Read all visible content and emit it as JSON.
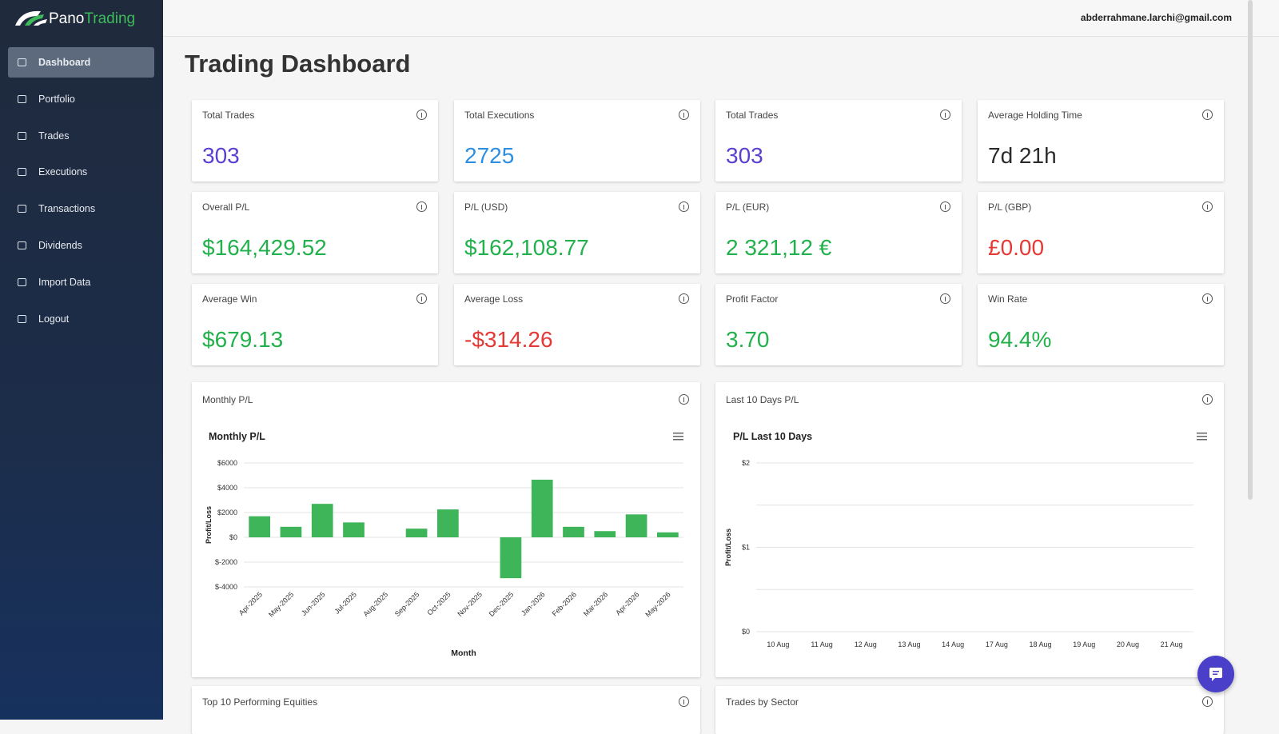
{
  "sidebar": {
    "logo": {
      "part1": "Pano",
      "part2": "Trading"
    },
    "menu": [
      "Dashboard",
      "Portfolio",
      "Trades",
      "Executions",
      "Transactions",
      "Dividends",
      "Import Data",
      "Logout"
    ],
    "active": 0
  },
  "header": {
    "email": "abderrahmane.larchi@gmail.com"
  },
  "page_title": "Trading Dashboard",
  "cards": [
    {
      "label": "Total Trades",
      "value": "303",
      "color": "#5b3fd1"
    },
    {
      "label": "Total Executions",
      "value": "2725",
      "color": "#2e8fe0"
    },
    {
      "label": "Total Trades",
      "value": "303",
      "color": "#5b3fd1"
    },
    {
      "label": "Average Holding Time",
      "value": "7d 21h",
      "color": "#2b2b2b"
    },
    {
      "label": "Overall P/L",
      "value": "$164,429.52",
      "color": "#22b14c"
    },
    {
      "label": "P/L (USD)",
      "value": "$162,108.77",
      "color": "#22b14c"
    },
    {
      "label": "P/L (EUR)",
      "value": "2 321,12 €",
      "color": "#22b14c"
    },
    {
      "label": "P/L (GBP)",
      "value": "£0.00",
      "color": "#e53935"
    },
    {
      "label": "Average Win",
      "value": "$679.13",
      "color": "#22b14c"
    },
    {
      "label": "Average Loss",
      "value": "-$314.26",
      "color": "#e53935"
    },
    {
      "label": "Profit Factor",
      "value": "3.70",
      "color": "#22b14c"
    },
    {
      "label": "Win Rate",
      "value": "94.4%",
      "color": "#22b14c"
    }
  ],
  "panels": [
    {
      "label": "Monthly P/L",
      "chart_data": {
        "type": "bar",
        "title": "Monthly P/L",
        "x_label": "Month",
        "y_label": "Profit/Loss",
        "color": "#3fb55a",
        "categories": [
          "Apr-2025",
          "May-2025",
          "Jun-2025",
          "Jul-2025",
          "Aug-2025",
          "Sep-2025",
          "Oct-2025",
          "Nov-2025",
          "Dec-2025",
          "Jan-2026",
          "Feb-2026",
          "Mar-2026",
          "Apr-2026",
          "May-2026"
        ],
        "values": [
          1700,
          850,
          2700,
          1200,
          0,
          700,
          2250,
          0,
          -3300,
          4650,
          850,
          500,
          1850,
          400
        ],
        "ylim": [
          -4000,
          6000
        ],
        "yticks": [
          {
            "value": -4000,
            "label": "$-4000"
          },
          {
            "value": -2000,
            "label": "$-2000"
          },
          {
            "value": 0,
            "label": "$0"
          },
          {
            "value": 2000,
            "label": "$2000"
          },
          {
            "value": 4000,
            "label": "$4000"
          },
          {
            "value": 6000,
            "label": "$6000"
          }
        ],
        "grid": true
      }
    },
    {
      "label": "Last 10 Days P/L",
      "chart_data": {
        "type": "line",
        "title": "P/L Last 10 Days",
        "y_label": "Profit/Loss",
        "categories": [
          "10 Aug",
          "11 Aug",
          "12 Aug",
          "13 Aug",
          "14 Aug",
          "17 Aug",
          "18 Aug",
          "19 Aug",
          "20 Aug",
          "21 Aug"
        ],
        "ylim": [
          0,
          2
        ],
        "yticks": [
          {
            "value": 0,
            "label": "$0"
          },
          {
            "value": 1,
            "label": "$1"
          },
          {
            "value": 2,
            "label": "$2"
          }
        ],
        "ygrid": [
          0,
          0.5,
          1,
          1.5,
          2
        ],
        "grid": true
      }
    }
  ],
  "bottom_panels": [
    "Top 10 Performing Equities",
    "Trades by Sector"
  ]
}
